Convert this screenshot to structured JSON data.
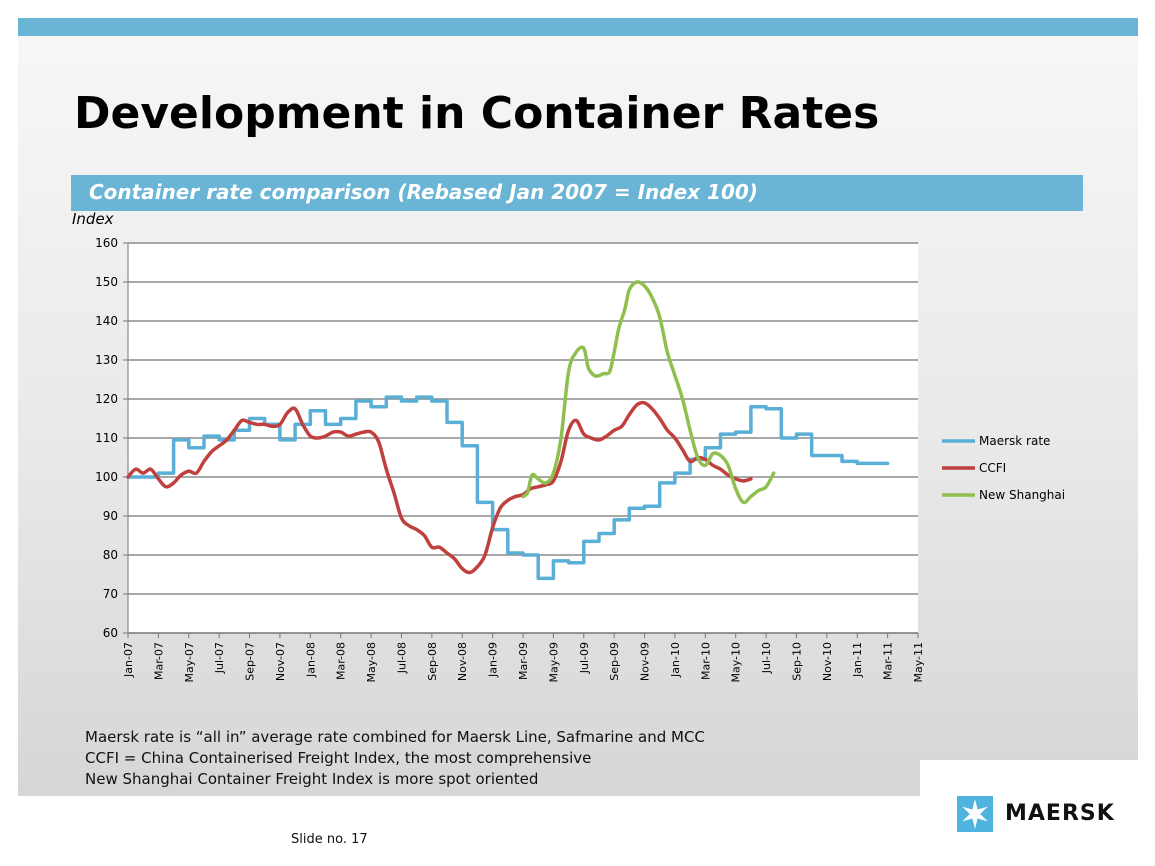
{
  "slide": {
    "title": "Development in Container Rates",
    "subtitle": "Container rate comparison (Rebased Jan 2007 = Index 100)",
    "notes": [
      "Maersk rate is “all in” average rate combined for Maersk Line, Safmarine and MCC",
      "CCFI = China Containerised Freight Index, the most comprehensive",
      "New Shanghai Container Freight Index is more spot oriented"
    ],
    "slide_number": "Slide no. 17",
    "logo_text": "MAERSK",
    "colors": {
      "accent": "#6ab4d6",
      "logo_star_bg": "#4fb3e0"
    }
  },
  "chart_data": {
    "type": "line",
    "ylabel": "Index",
    "ylim": [
      60,
      160
    ],
    "yticks": [
      60,
      70,
      80,
      90,
      100,
      110,
      120,
      130,
      140,
      150,
      160
    ],
    "x_range": [
      0,
      52
    ],
    "xtick_labels": [
      "Jan-07",
      "Mar-07",
      "May-07",
      "Jul-07",
      "Sep-07",
      "Nov-07",
      "Jan-08",
      "Mar-08",
      "May-08",
      "Jul-08",
      "Sep-08",
      "Nov-08",
      "Jan-09",
      "Mar-09",
      "May-09",
      "Jul-09",
      "Sep-09",
      "Nov-09",
      "Jan-10",
      "Mar-10",
      "May-10",
      "Jul-10",
      "Sep-10",
      "Nov-10",
      "Jan-11",
      "Mar-11",
      "May-11"
    ],
    "xtick_positions": [
      0,
      2,
      4,
      6,
      8,
      10,
      12,
      14,
      16,
      18,
      20,
      22,
      24,
      26,
      28,
      30,
      32,
      34,
      36,
      38,
      40,
      42,
      44,
      46,
      48,
      50,
      52
    ],
    "grid": true,
    "legend_position": "right",
    "series": [
      {
        "name": "Maersk rate",
        "color": "#5aafd6",
        "style": "step",
        "points": [
          [
            0,
            100
          ],
          [
            1,
            100
          ],
          [
            2,
            101
          ],
          [
            3,
            109.5
          ],
          [
            4,
            107.5
          ],
          [
            5,
            110.5
          ],
          [
            6,
            109.5
          ],
          [
            7,
            112
          ],
          [
            8,
            115
          ],
          [
            9,
            113.5
          ],
          [
            10,
            109.5
          ],
          [
            11,
            113.5
          ],
          [
            12,
            117
          ],
          [
            13,
            113.5
          ],
          [
            14,
            115
          ],
          [
            15,
            119.5
          ],
          [
            16,
            118
          ],
          [
            17,
            120.5
          ],
          [
            18,
            119.5
          ],
          [
            19,
            120.5
          ],
          [
            20,
            119.5
          ],
          [
            21,
            114
          ],
          [
            22,
            108
          ],
          [
            23,
            93.5
          ],
          [
            24,
            86.5
          ],
          [
            25,
            80.5
          ],
          [
            26,
            80
          ],
          [
            27,
            74
          ],
          [
            28,
            78.5
          ],
          [
            29,
            78
          ],
          [
            30,
            83.5
          ],
          [
            31,
            85.5
          ],
          [
            32,
            89
          ],
          [
            33,
            92
          ],
          [
            34,
            92.5
          ],
          [
            35,
            98.5
          ],
          [
            36,
            101
          ],
          [
            37,
            104.5
          ],
          [
            38,
            107.5
          ],
          [
            39,
            111
          ],
          [
            40,
            111.5
          ],
          [
            41,
            118
          ],
          [
            42,
            117.5
          ],
          [
            43,
            110
          ],
          [
            44,
            111
          ],
          [
            45,
            105.5
          ],
          [
            46,
            105.5
          ],
          [
            47,
            104
          ],
          [
            48,
            103.5
          ],
          [
            49,
            103.5
          ]
        ]
      },
      {
        "name": "CCFI",
        "color": "#c0403e",
        "style": "smooth",
        "points": [
          [
            0,
            100
          ],
          [
            0.5,
            102
          ],
          [
            1,
            101
          ],
          [
            1.5,
            102
          ],
          [
            2,
            99.5
          ],
          [
            2.5,
            97.5
          ],
          [
            3,
            98.5
          ],
          [
            3.5,
            100.5
          ],
          [
            4,
            101.5
          ],
          [
            4.5,
            101
          ],
          [
            5,
            104
          ],
          [
            5.5,
            106.5
          ],
          [
            6,
            108
          ],
          [
            6.5,
            109.5
          ],
          [
            7,
            112
          ],
          [
            7.5,
            114.5
          ],
          [
            8,
            114
          ],
          [
            8.5,
            113.5
          ],
          [
            9,
            113.5
          ],
          [
            9.5,
            113
          ],
          [
            10,
            113.5
          ],
          [
            10.5,
            116.5
          ],
          [
            11,
            117.5
          ],
          [
            11.5,
            113.5
          ],
          [
            12,
            110.5
          ],
          [
            12.5,
            110
          ],
          [
            13,
            110.5
          ],
          [
            13.5,
            111.5
          ],
          [
            14,
            111.5
          ],
          [
            14.5,
            110.5
          ],
          [
            15,
            111
          ],
          [
            15.5,
            111.5
          ],
          [
            16,
            111.5
          ],
          [
            16.5,
            109
          ],
          [
            17,
            102
          ],
          [
            17.5,
            96
          ],
          [
            18,
            89.5
          ],
          [
            18.5,
            87.5
          ],
          [
            19,
            86.5
          ],
          [
            19.5,
            85
          ],
          [
            20,
            82
          ],
          [
            20.5,
            82
          ],
          [
            21,
            80.5
          ],
          [
            21.5,
            79
          ],
          [
            22,
            76.5
          ],
          [
            22.5,
            75.5
          ],
          [
            23,
            77
          ],
          [
            23.5,
            80
          ],
          [
            24,
            87
          ],
          [
            24.5,
            92
          ],
          [
            25,
            94
          ],
          [
            25.5,
            95
          ],
          [
            26,
            95.5
          ],
          [
            26.5,
            97
          ],
          [
            27,
            97.5
          ],
          [
            27.5,
            98
          ],
          [
            28,
            99
          ],
          [
            28.5,
            104
          ],
          [
            29,
            112
          ],
          [
            29.5,
            114.5
          ],
          [
            30,
            111
          ],
          [
            30.5,
            110
          ],
          [
            31,
            109.5
          ],
          [
            31.5,
            110.5
          ],
          [
            32,
            112
          ],
          [
            32.5,
            113
          ],
          [
            33,
            116
          ],
          [
            33.5,
            118.5
          ],
          [
            34,
            119
          ],
          [
            34.5,
            117.5
          ],
          [
            35,
            115
          ],
          [
            35.5,
            112
          ],
          [
            36,
            110
          ],
          [
            36.5,
            107
          ],
          [
            37,
            104
          ],
          [
            37.5,
            105
          ],
          [
            38,
            104.5
          ],
          [
            38.5,
            103
          ],
          [
            39,
            102
          ],
          [
            39.5,
            100.5
          ],
          [
            40,
            99.5
          ],
          [
            40.5,
            99
          ],
          [
            41,
            99.5
          ]
        ]
      },
      {
        "name": "New Shanghai",
        "color": "#8fbf4f",
        "style": "smooth",
        "points": [
          [
            26,
            95
          ],
          [
            26.3,
            96
          ],
          [
            26.6,
            100.5
          ],
          [
            27,
            99.5
          ],
          [
            27.5,
            98.5
          ],
          [
            28,
            101
          ],
          [
            28.5,
            110
          ],
          [
            29,
            127
          ],
          [
            29.5,
            132
          ],
          [
            30,
            133
          ],
          [
            30.3,
            128
          ],
          [
            30.7,
            126
          ],
          [
            31,
            126
          ],
          [
            31.3,
            126.5
          ],
          [
            31.7,
            127
          ],
          [
            32,
            132
          ],
          [
            32.3,
            138
          ],
          [
            32.7,
            143
          ],
          [
            33,
            148
          ],
          [
            33.5,
            150
          ],
          [
            34,
            149
          ],
          [
            34.5,
            146
          ],
          [
            35,
            141
          ],
          [
            35.5,
            132
          ],
          [
            36,
            126
          ],
          [
            36.5,
            120
          ],
          [
            37,
            112
          ],
          [
            37.5,
            105
          ],
          [
            38,
            103
          ],
          [
            38.5,
            106
          ],
          [
            39,
            105.5
          ],
          [
            39.5,
            103
          ],
          [
            40,
            97
          ],
          [
            40.5,
            93.5
          ],
          [
            41,
            95
          ],
          [
            41.5,
            96.5
          ],
          [
            42,
            97.5
          ],
          [
            42.5,
            101
          ]
        ]
      }
    ]
  }
}
